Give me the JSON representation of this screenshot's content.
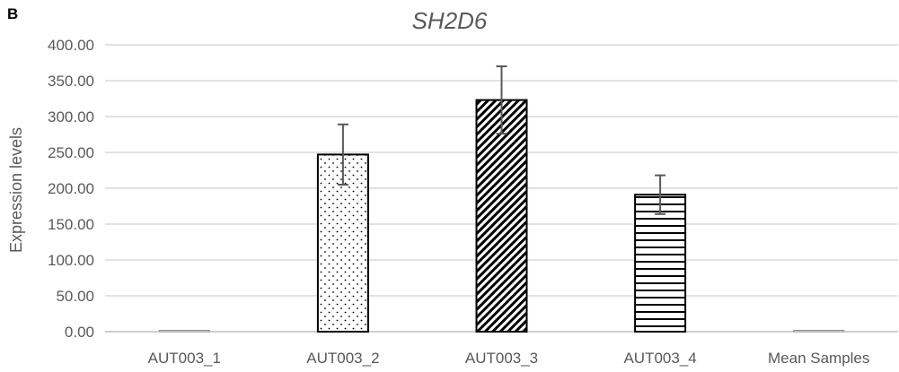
{
  "panel_label": "B",
  "chart_data": {
    "type": "bar",
    "title": "SH2D6",
    "xlabel": "",
    "ylabel": "Expression levels",
    "ylim": [
      0,
      400
    ],
    "yticks": [
      "0.00",
      "50.00",
      "100.00",
      "150.00",
      "200.00",
      "250.00",
      "300.00",
      "350.00",
      "400.00"
    ],
    "grid": true,
    "categories": [
      "AUT003_1",
      "AUT003_2",
      "AUT003_3",
      "AUT003_4",
      "Mean Samples"
    ],
    "values": [
      1,
      247,
      323,
      191,
      1
    ],
    "error": [
      0,
      42,
      47,
      27,
      0
    ],
    "patterns": [
      "none",
      "dots",
      "diagonal",
      "horizontal",
      "none"
    ]
  }
}
